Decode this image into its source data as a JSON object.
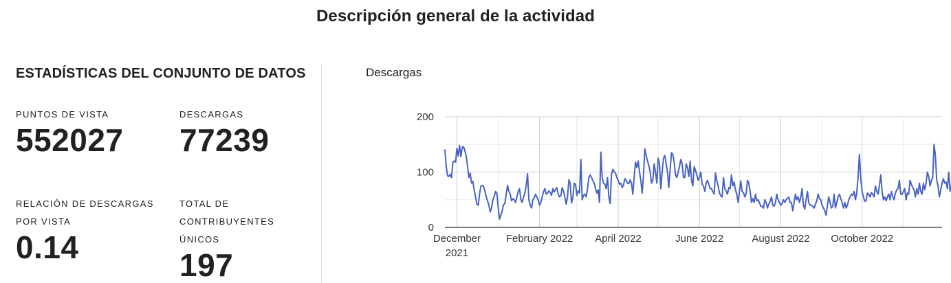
{
  "page": {
    "title": "Descripción general de la actividad"
  },
  "stats": {
    "heading": "ESTADÍSTICAS DEL CONJUNTO DE DATOS",
    "views_label": "PUNTOS DE VISTA",
    "views_value": "552027",
    "downloads_label": "DESCARGAS",
    "downloads_value": "77239",
    "ratio_label": "RELACIÓN DE DESCARGAS POR VISTA",
    "ratio_value": "0.14",
    "contrib_label": "TOTAL DE CONTRIBUYENTES ÚNICOS",
    "contrib_value": "197"
  },
  "chart": {
    "title": "Descargas"
  },
  "chart_data": {
    "type": "line",
    "title": "Descargas",
    "xlabel": "",
    "ylabel": "",
    "ylim": [
      0,
      200
    ],
    "yticks": [
      0,
      100,
      200
    ],
    "xlim": [
      "2021-11-22",
      "2022-11-30"
    ],
    "xticks": [
      {
        "date": "2021-12-01",
        "label": "December 2021"
      },
      {
        "date": "2022-02-01",
        "label": "February 2022"
      },
      {
        "date": "2022-04-01",
        "label": "April 2022"
      },
      {
        "date": "2022-06-01",
        "label": "June 2022"
      },
      {
        "date": "2022-08-01",
        "label": "August 2022"
      },
      {
        "date": "2022-10-01",
        "label": "October 2022"
      }
    ],
    "grid": true,
    "line_color": "#4763c4",
    "series": [
      {
        "start_date": "2021-11-22",
        "step_days": 1,
        "values": [
          140,
          110,
          93,
          92,
          96,
          90,
          118,
          120,
          118,
          143,
          129,
          148,
          128,
          145,
          146,
          138,
          129,
          110,
          90,
          98,
          80,
          83,
          67,
          55,
          42,
          40,
          60,
          75,
          76,
          74,
          66,
          55,
          48,
          40,
          28,
          35,
          50,
          56,
          65,
          62,
          35,
          15,
          22,
          30,
          41,
          43,
          60,
          76,
          65,
          60,
          48,
          52,
          50,
          45,
          55,
          65,
          70,
          50,
          45,
          55,
          62,
          76,
          97,
          50,
          40,
          35,
          50,
          53,
          60,
          55,
          50,
          40,
          45,
          55,
          65,
          70,
          60,
          62,
          66,
          63,
          58,
          70,
          64,
          68,
          72,
          60,
          55,
          57,
          72,
          65,
          55,
          42,
          55,
          86,
          80,
          44,
          54,
          80,
          78,
          58,
          66,
          62,
          123,
          50,
          58,
          60,
          55,
          70,
          90,
          95,
          90,
          85,
          80,
          70,
          62,
          68,
          45,
          136,
          90,
          80,
          78,
          70,
          90,
          55,
          43,
          95,
          105,
          100,
          98,
          90,
          85,
          78,
          80,
          72,
          77,
          88,
          85,
          80,
          79,
          86,
          80,
          60,
          90,
          118,
          108,
          120,
          100,
          85,
          62,
          94,
          142,
          130,
          120,
          112,
          100,
          80,
          85,
          115,
          100,
          80,
          125,
          115,
          70,
          100,
          125,
          130,
          115,
          100,
          72,
          105,
          135,
          132,
          118,
          95,
          90,
          100,
          110,
          123,
          115,
          90,
          90,
          115,
          108,
          92,
          120,
          85,
          75,
          110,
          103,
          95,
          85,
          90,
          100,
          78,
          75,
          65,
          80,
          85,
          78,
          70,
          70,
          65,
          60,
          98,
          85,
          75,
          62,
          57,
          55,
          90,
          70,
          66,
          60,
          72,
          70,
          95,
          75,
          82,
          68,
          60,
          45,
          65,
          84,
          65,
          63,
          55,
          60,
          85,
          80,
          65,
          45,
          52,
          45,
          60,
          48,
          50,
          45,
          38,
          38,
          35,
          50,
          45,
          35,
          42,
          47,
          55,
          40,
          38,
          45,
          60,
          50,
          45,
          40,
          43,
          50,
          45,
          50,
          52,
          55,
          45,
          45,
          30,
          45,
          60,
          50,
          55,
          45,
          55,
          70,
          40,
          33,
          50,
          65,
          45,
          40,
          40,
          38,
          35,
          42,
          48,
          60,
          52,
          50,
          40,
          35,
          30,
          22,
          40,
          55,
          45,
          35,
          38,
          60,
          35,
          45,
          55,
          60,
          52,
          45,
          35,
          45,
          35,
          40,
          50,
          55,
          60,
          58,
          65,
          50,
          62,
          92,
          132,
          88,
          65,
          55,
          47,
          48,
          62,
          60,
          55,
          63,
          60,
          55,
          75,
          65,
          60,
          75,
          95,
          65,
          50,
          55,
          48,
          55,
          60,
          50,
          65,
          55,
          50,
          62,
          68,
          70,
          85,
          60,
          60,
          65,
          70,
          50,
          62,
          60,
          85,
          78,
          72,
          68,
          55,
          70,
          60,
          80,
          65,
          60,
          80,
          68,
          80,
          100,
          92,
          75,
          85,
          90,
          150,
          130,
          85,
          75,
          55,
          68,
          80,
          88,
          80,
          82,
          70,
          100,
          65,
          75,
          93,
          80,
          75,
          60
        ]
      }
    ]
  }
}
